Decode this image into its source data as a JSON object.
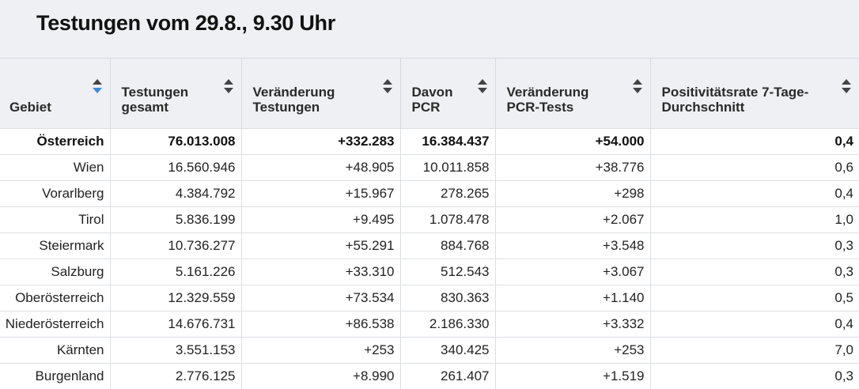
{
  "title": "Testungen vom 29.8., 9.30 Uhr",
  "headers": [
    "Gebiet",
    "Testungen gesamt",
    "Veränderung Testungen",
    "Davon PCR",
    "Veränderung PCR-Tests",
    "Positivitätsrate 7-Tage-Durchschnitt"
  ],
  "rows": [
    [
      "Österreich",
      "76.013.008",
      "+332.283",
      "16.384.437",
      "+54.000",
      "0,4"
    ],
    [
      "Wien",
      "16.560.946",
      "+48.905",
      "10.011.858",
      "+38.776",
      "0,6"
    ],
    [
      "Vorarlberg",
      "4.384.792",
      "+15.967",
      "278.265",
      "+298",
      "0,4"
    ],
    [
      "Tirol",
      "5.836.199",
      "+9.495",
      "1.078.478",
      "+2.067",
      "1,0"
    ],
    [
      "Steiermark",
      "10.736.277",
      "+55.291",
      "884.768",
      "+3.548",
      "0,3"
    ],
    [
      "Salzburg",
      "5.161.226",
      "+33.310",
      "512.543",
      "+3.067",
      "0,3"
    ],
    [
      "Oberösterreich",
      "12.329.559",
      "+73.534",
      "830.363",
      "+1.140",
      "0,5"
    ],
    [
      "Niederösterreich",
      "14.676.731",
      "+86.538",
      "2.186.330",
      "+3.332",
      "0,4"
    ],
    [
      "Kärnten",
      "3.551.153",
      "+253",
      "340.425",
      "+253",
      "7,0"
    ],
    [
      "Burgenland",
      "2.776.125",
      "+8.990",
      "261.407",
      "+1.519",
      "0,3"
    ]
  ],
  "colors": {
    "sort_active": "#3d8be0",
    "header_bg": "#eef0f4"
  }
}
